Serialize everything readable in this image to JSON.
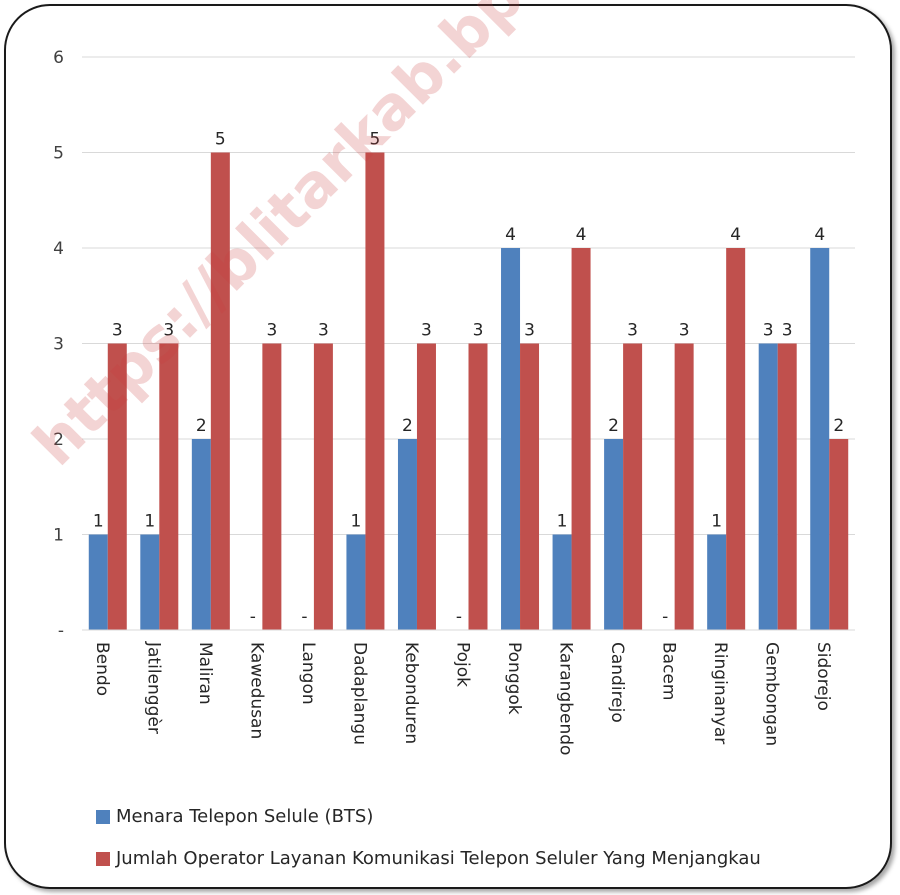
{
  "chart_data": {
    "type": "bar",
    "categories": [
      "Bendo",
      "Jatilenggèr",
      "Maliran",
      "Kawedusan",
      "Langon",
      "Dadaplangu",
      "Kebonduren",
      "Pojok",
      "Ponggok",
      "Karangbendo",
      "Candirejo",
      "Bacem",
      "Ringinanyar",
      "Gembongan",
      "Sidorejo"
    ],
    "series": [
      {
        "name": "Menara Telepon Selule (BTS)",
        "color": "#4f81bd",
        "values": [
          1,
          1,
          2,
          0,
          0,
          1,
          2,
          0,
          4,
          1,
          2,
          0,
          1,
          3,
          4
        ],
        "labels": [
          "1",
          "1",
          "2",
          "-",
          "-",
          "1",
          "2",
          "-",
          "4",
          "1",
          "2",
          "-",
          "1",
          "3",
          "4"
        ]
      },
      {
        "name": "Jumlah Operator Layanan Komunikasi Telepon Seluler Yang Menjangkau",
        "color": "#c0504d",
        "values": [
          3,
          3,
          5,
          3,
          3,
          5,
          3,
          3,
          3,
          4,
          3,
          3,
          4,
          3,
          2
        ],
        "labels": [
          "3",
          "3",
          "5",
          "3",
          "3",
          "5",
          "3",
          "3",
          "3",
          "4",
          "3",
          "3",
          "4",
          "3",
          "2"
        ]
      }
    ],
    "ylim": [
      0,
      6
    ],
    "yticks": [
      {
        "v": 0,
        "label": "-"
      },
      {
        "v": 1,
        "label": "1"
      },
      {
        "v": 2,
        "label": "2"
      },
      {
        "v": 3,
        "label": "3"
      },
      {
        "v": 4,
        "label": "4"
      },
      {
        "v": 5,
        "label": "5"
      },
      {
        "v": 6,
        "label": "6"
      }
    ],
    "grid": true,
    "legend_position": "bottom",
    "watermark": "https://blitarkab.bps.go.id"
  }
}
